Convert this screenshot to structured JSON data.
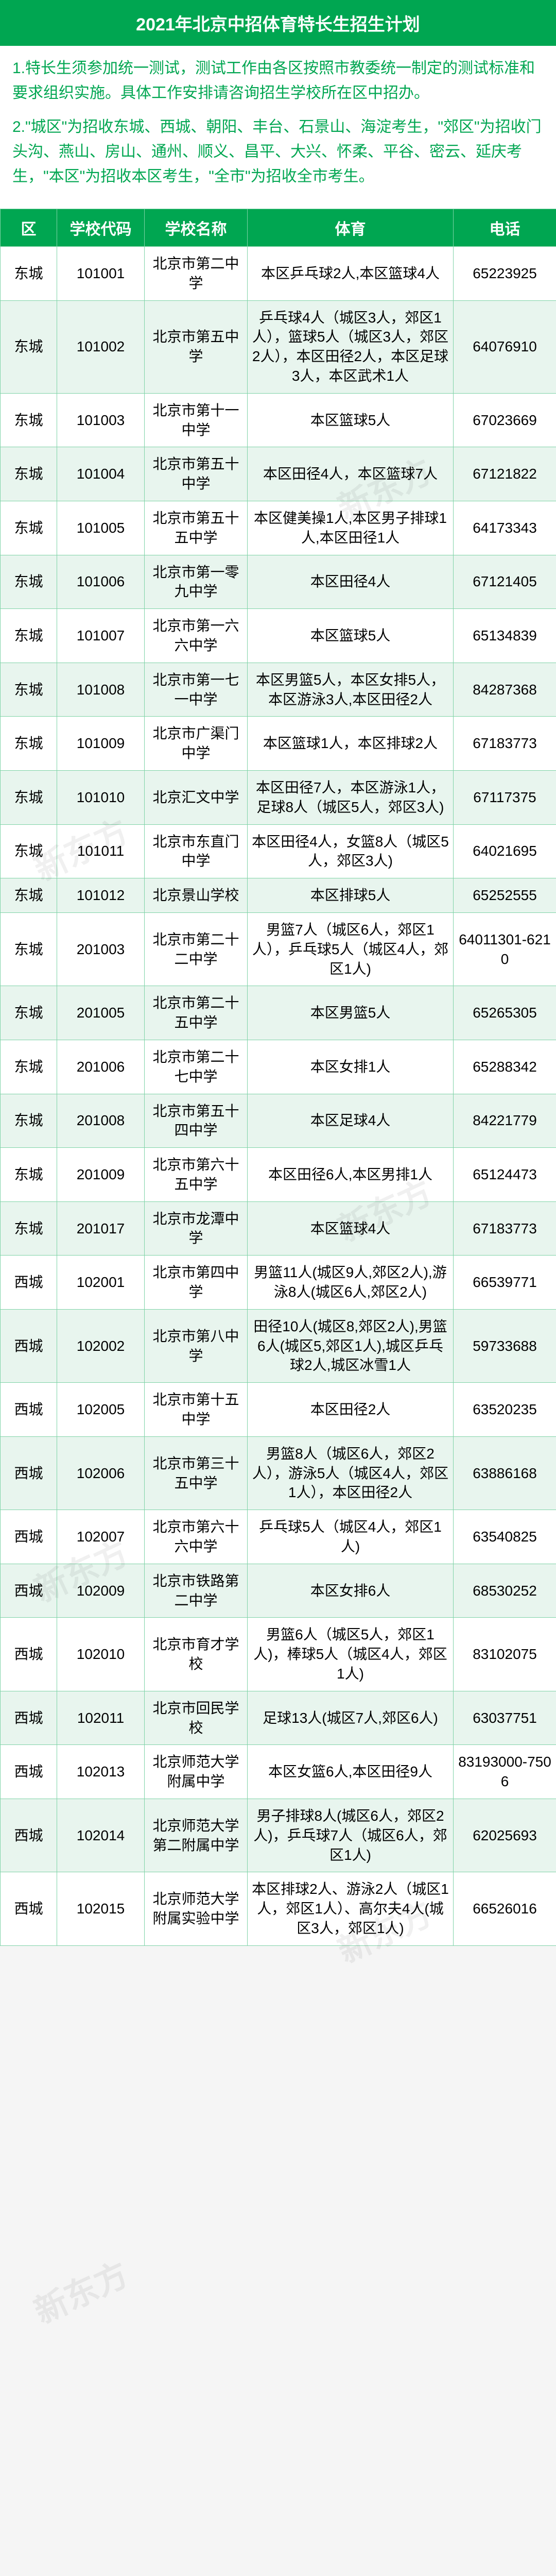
{
  "title": "2021年北京中招体育特长生招生计划",
  "notes": [
    "1.特长生须参加统一测试，测试工作由各区按照市教委统一制定的测试标准和要求组织实施。具体工作安排请咨询招生学校所在区中招办。",
    "2.\"城区\"为招收东城、西城、朝阳、丰台、石景山、海淀考生，\"郊区\"为招收门头沟、燕山、房山、通州、顺义、昌平、大兴、怀柔、平谷、密云、延庆考生，\"本区\"为招收本区考生，\"全市\"为招收全市考生。"
  ],
  "columns": [
    "区",
    "学校代码",
    "学校名称",
    "体育",
    "电话"
  ],
  "colors": {
    "header_bg": "#00a651",
    "header_fg": "#ffffff",
    "row_even_bg": "#e8f5ee",
    "row_odd_bg": "#ffffff",
    "border": "#7fd3a7",
    "note_fg": "#00a651"
  },
  "watermark_text": "新东方",
  "rows": [
    {
      "district": "东城",
      "code": "101001",
      "name": "北京市第二中学",
      "sport": "本区乒乓球2人,本区篮球4人",
      "phone": "65223925"
    },
    {
      "district": "东城",
      "code": "101002",
      "name": "北京市第五中学",
      "sport": "乒乓球4人（城区3人，郊区1人），篮球5人（城区3人，郊区2人），本区田径2人，本区足球3人，本区武术1人",
      "phone": "64076910"
    },
    {
      "district": "东城",
      "code": "101003",
      "name": "北京市第十一中学",
      "sport": "本区篮球5人",
      "phone": "67023669"
    },
    {
      "district": "东城",
      "code": "101004",
      "name": "北京市第五十中学",
      "sport": "本区田径4人，本区篮球7人",
      "phone": "67121822"
    },
    {
      "district": "东城",
      "code": "101005",
      "name": "北京市第五十五中学",
      "sport": "本区健美操1人,本区男子排球1人,本区田径1人",
      "phone": "64173343"
    },
    {
      "district": "东城",
      "code": "101006",
      "name": "北京市第一零九中学",
      "sport": "本区田径4人",
      "phone": "67121405"
    },
    {
      "district": "东城",
      "code": "101007",
      "name": "北京市第一六六中学",
      "sport": "本区篮球5人",
      "phone": "65134839"
    },
    {
      "district": "东城",
      "code": "101008",
      "name": "北京市第一七一中学",
      "sport": "本区男篮5人，本区女排5人，本区游泳3人,本区田径2人",
      "phone": "84287368"
    },
    {
      "district": "东城",
      "code": "101009",
      "name": "北京市广渠门中学",
      "sport": "本区篮球1人，本区排球2人",
      "phone": "67183773"
    },
    {
      "district": "东城",
      "code": "101010",
      "name": "北京汇文中学",
      "sport": "本区田径7人，本区游泳1人，足球8人（城区5人，郊区3人)",
      "phone": "67117375"
    },
    {
      "district": "东城",
      "code": "101011",
      "name": "北京市东直门中学",
      "sport": "本区田径4人，女篮8人（城区5人，郊区3人)",
      "phone": "64021695"
    },
    {
      "district": "东城",
      "code": "101012",
      "name": "北京景山学校",
      "sport": "本区排球5人",
      "phone": "65252555"
    },
    {
      "district": "东城",
      "code": "201003",
      "name": "北京市第二十二中学",
      "sport": "男篮7人（城区6人，郊区1人），乒乓球5人（城区4人，郊区1人)",
      "phone": "64011301-6210"
    },
    {
      "district": "东城",
      "code": "201005",
      "name": "北京市第二十五中学",
      "sport": "本区男篮5人",
      "phone": "65265305"
    },
    {
      "district": "东城",
      "code": "201006",
      "name": "北京市第二十七中学",
      "sport": "本区女排1人",
      "phone": "65288342"
    },
    {
      "district": "东城",
      "code": "201008",
      "name": "北京市第五十四中学",
      "sport": "本区足球4人",
      "phone": "84221779"
    },
    {
      "district": "东城",
      "code": "201009",
      "name": "北京市第六十五中学",
      "sport": "本区田径6人,本区男排1人",
      "phone": "65124473"
    },
    {
      "district": "东城",
      "code": "201017",
      "name": "北京市龙潭中学",
      "sport": "本区篮球4人",
      "phone": "67183773"
    },
    {
      "district": "西城",
      "code": "102001",
      "name": "北京市第四中学",
      "sport": "男篮11人(城区9人,郊区2人),游泳8人(城区6人,郊区2人)",
      "phone": "66539771"
    },
    {
      "district": "西城",
      "code": "102002",
      "name": "北京市第八中学",
      "sport": "田径10人(城区8,郊区2人),男篮6人(城区5,郊区1人),城区乒乓球2人,城区冰雪1人",
      "phone": "59733688"
    },
    {
      "district": "西城",
      "code": "102005",
      "name": "北京市第十五中学",
      "sport": "本区田径2人",
      "phone": "63520235"
    },
    {
      "district": "西城",
      "code": "102006",
      "name": "北京市第三十五中学",
      "sport": "男篮8人（城区6人，郊区2人），游泳5人（城区4人，郊区1人），本区田径2人",
      "phone": "63886168"
    },
    {
      "district": "西城",
      "code": "102007",
      "name": "北京市第六十六中学",
      "sport": "乒乓球5人（城区4人，郊区1人)",
      "phone": "63540825"
    },
    {
      "district": "西城",
      "code": "102009",
      "name": "北京市铁路第二中学",
      "sport": "本区女排6人",
      "phone": "68530252"
    },
    {
      "district": "西城",
      "code": "102010",
      "name": "北京市育才学校",
      "sport": "男篮6人（城区5人，郊区1人)，棒球5人（城区4人，郊区1人)",
      "phone": "83102075"
    },
    {
      "district": "西城",
      "code": "102011",
      "name": "北京市回民学校",
      "sport": "足球13人(城区7人,郊区6人)",
      "phone": "63037751"
    },
    {
      "district": "西城",
      "code": "102013",
      "name": "北京师范大学附属中学",
      "sport": "本区女篮6人,本区田径9人",
      "phone": "83193000-7506"
    },
    {
      "district": "西城",
      "code": "102014",
      "name": "北京师范大学第二附属中学",
      "sport": "男子排球8人(城区6人，郊区2人)，乒乓球7人（城区6人，郊区1人)",
      "phone": "62025693"
    },
    {
      "district": "西城",
      "code": "102015",
      "name": "北京师范大学附属实验中学",
      "sport": "本区排球2人、游泳2人（城区1人，郊区1人）、高尔夫4人(城区3人，郊区1人)",
      "phone": "66526016"
    }
  ]
}
